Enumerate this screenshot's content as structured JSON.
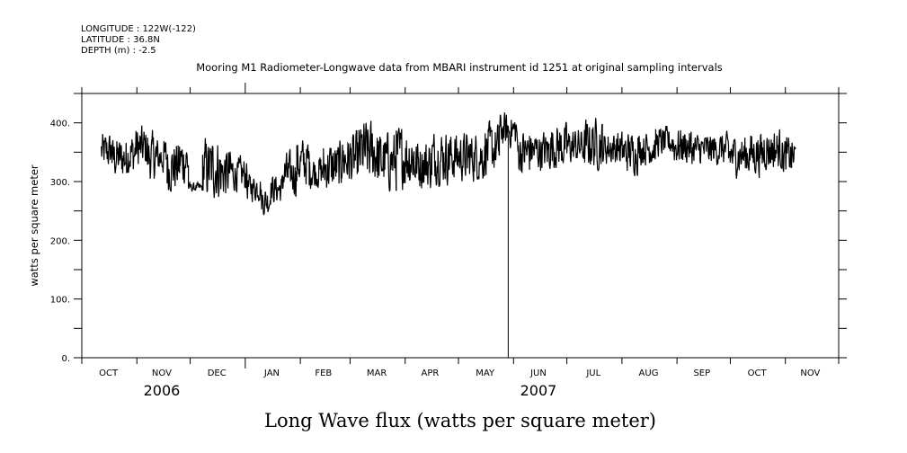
{
  "header": {
    "longitude": "LONGITUDE : 122W(-122)",
    "latitude": "LATITUDE : 36.8N",
    "depth": "DEPTH (m) : -2.5"
  },
  "chart_data": {
    "type": "line",
    "title": "Mooring M1 Radiometer-Longwave data from MBARI instrument id 1251 at original sampling intervals",
    "xlabel": "Long Wave flux (watts per square meter)",
    "ylabel": "watts per square meter",
    "xlim": [
      "2006-10-01",
      "2007-12-01"
    ],
    "ylim": [
      0,
      450
    ],
    "y_ticks": [
      0,
      100,
      200,
      300,
      400
    ],
    "y_tick_labels": [
      "0.",
      "100.",
      "200.",
      "300.",
      "400."
    ],
    "y_minor_step": 50,
    "x_month_labels": [
      {
        "date": "2006-10-16",
        "label": "OCT"
      },
      {
        "date": "2006-11-15",
        "label": "NOV"
      },
      {
        "date": "2006-12-16",
        "label": "DEC"
      },
      {
        "date": "2007-01-16",
        "label": "JAN"
      },
      {
        "date": "2007-02-14",
        "label": "FEB"
      },
      {
        "date": "2007-03-16",
        "label": "MAR"
      },
      {
        "date": "2007-04-15",
        "label": "APR"
      },
      {
        "date": "2007-05-16",
        "label": "MAY"
      },
      {
        "date": "2007-06-15",
        "label": "JUN"
      },
      {
        "date": "2007-07-16",
        "label": "JUL"
      },
      {
        "date": "2007-08-16",
        "label": "AUG"
      },
      {
        "date": "2007-09-15",
        "label": "SEP"
      },
      {
        "date": "2007-10-16",
        "label": "OCT"
      },
      {
        "date": "2007-11-15",
        "label": "NOV"
      }
    ],
    "x_year_labels": [
      {
        "date": "2006-11-15",
        "label": "2006"
      },
      {
        "date": "2007-06-15",
        "label": "2007"
      }
    ],
    "series": [
      {
        "name": "Longwave radiation",
        "note_envelope": "low/high range per period",
        "periods": [
          {
            "date": "2006-10-12",
            "low": 310,
            "high": 392
          },
          {
            "date": "2006-10-18",
            "low": 295,
            "high": 385
          },
          {
            "date": "2006-10-26",
            "low": 300,
            "high": 395
          },
          {
            "date": "2006-10-31",
            "low": 310,
            "high": 405
          },
          {
            "date": "2006-11-07",
            "low": 290,
            "high": 395
          },
          {
            "date": "2006-11-12",
            "low": 300,
            "high": 385
          },
          {
            "date": "2006-11-18",
            "low": 270,
            "high": 380
          },
          {
            "date": "2006-11-25",
            "low": 280,
            "high": 390
          },
          {
            "date": "2006-11-30",
            "low": 280,
            "high": 300
          },
          {
            "date": "2006-12-08",
            "low": 255,
            "high": 390
          },
          {
            "date": "2006-12-18",
            "low": 260,
            "high": 370
          },
          {
            "date": "2006-12-25",
            "low": 275,
            "high": 350
          },
          {
            "date": "2007-01-02",
            "low": 260,
            "high": 320
          },
          {
            "date": "2007-01-10",
            "low": 235,
            "high": 300
          },
          {
            "date": "2007-01-15",
            "low": 255,
            "high": 320
          },
          {
            "date": "2007-01-22",
            "low": 265,
            "high": 360
          },
          {
            "date": "2007-01-30",
            "low": 280,
            "high": 385
          },
          {
            "date": "2007-02-06",
            "low": 280,
            "high": 355
          },
          {
            "date": "2007-02-14",
            "low": 270,
            "high": 380
          },
          {
            "date": "2007-02-24",
            "low": 280,
            "high": 395
          },
          {
            "date": "2007-03-06",
            "low": 280,
            "high": 420
          },
          {
            "date": "2007-03-16",
            "low": 270,
            "high": 400
          },
          {
            "date": "2007-03-27",
            "low": 275,
            "high": 410
          },
          {
            "date": "2007-04-06",
            "low": 275,
            "high": 385
          },
          {
            "date": "2007-04-16",
            "low": 285,
            "high": 400
          },
          {
            "date": "2007-04-26",
            "low": 290,
            "high": 395
          },
          {
            "date": "2007-05-06",
            "low": 290,
            "high": 395
          },
          {
            "date": "2007-05-16",
            "low": 300,
            "high": 410
          },
          {
            "date": "2007-05-24",
            "low": 350,
            "high": 425
          },
          {
            "date": "2007-06-03",
            "low": 300,
            "high": 400
          },
          {
            "date": "2007-06-10",
            "low": 310,
            "high": 395
          },
          {
            "date": "2007-06-21",
            "low": 310,
            "high": 410
          },
          {
            "date": "2007-07-01",
            "low": 320,
            "high": 400
          },
          {
            "date": "2007-07-11",
            "low": 310,
            "high": 420
          },
          {
            "date": "2007-07-21",
            "low": 320,
            "high": 395
          },
          {
            "date": "2007-07-31",
            "low": 305,
            "high": 395
          },
          {
            "date": "2007-08-10",
            "low": 320,
            "high": 395
          },
          {
            "date": "2007-08-20",
            "low": 335,
            "high": 400
          },
          {
            "date": "2007-08-30",
            "low": 320,
            "high": 400
          },
          {
            "date": "2007-09-09",
            "low": 320,
            "high": 390
          },
          {
            "date": "2007-09-20",
            "low": 320,
            "high": 390
          },
          {
            "date": "2007-09-30",
            "low": 300,
            "high": 390
          },
          {
            "date": "2007-10-10",
            "low": 300,
            "high": 395
          },
          {
            "date": "2007-10-20",
            "low": 310,
            "high": 400
          },
          {
            "date": "2007-10-30",
            "low": 300,
            "high": 385
          }
        ],
        "end_date": "2007-11-07",
        "spike": {
          "date": "2007-05-29",
          "value": 0
        }
      }
    ]
  }
}
